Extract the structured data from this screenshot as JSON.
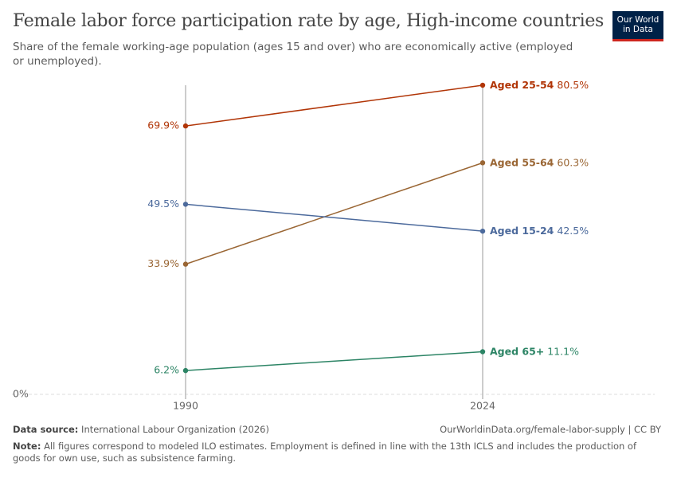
{
  "chart_data": {
    "type": "slope",
    "title": "Female labor force participation rate by age, High-income countries",
    "subtitle": "Share of the female working-age population (ages 15 and over) who are economically active (employed or unemployed).",
    "x": [
      1990,
      2024
    ],
    "xlim": [
      1990,
      2024
    ],
    "xticks": [
      1990,
      2024
    ],
    "ylim": [
      0,
      80.5
    ],
    "yticks": [
      {
        "value": 0,
        "label": "0%"
      }
    ],
    "series": [
      {
        "name": "Aged 25-54",
        "color": "#b13507",
        "values": [
          69.9,
          80.5
        ],
        "value_labels": [
          "69.9%",
          "80.5%"
        ]
      },
      {
        "name": "Aged 55-64",
        "color": "#9a6634",
        "values": [
          33.9,
          60.3
        ],
        "value_labels": [
          "33.9%",
          "60.3%"
        ]
      },
      {
        "name": "Aged 15-24",
        "color": "#4c6a9c",
        "values": [
          49.5,
          42.5
        ],
        "value_labels": [
          "49.5%",
          "42.5%"
        ]
      },
      {
        "name": "Aged 65+",
        "color": "#2c8465",
        "values": [
          6.2,
          11.1
        ],
        "value_labels": [
          "6.2%",
          "11.1%"
        ]
      }
    ],
    "logo": [
      "Our World",
      "in Data"
    ],
    "source_label": "Data source:",
    "source": "International Labour Organization (2026)",
    "url": "OurWorldinData.org/female-labor-supply | CC BY",
    "note_label": "Note:",
    "note": "All figures correspond to modeled ILO estimates. Employment is defined in line with the 13th ICLS and includes the production of goods for own use, such as subsistence farming."
  }
}
